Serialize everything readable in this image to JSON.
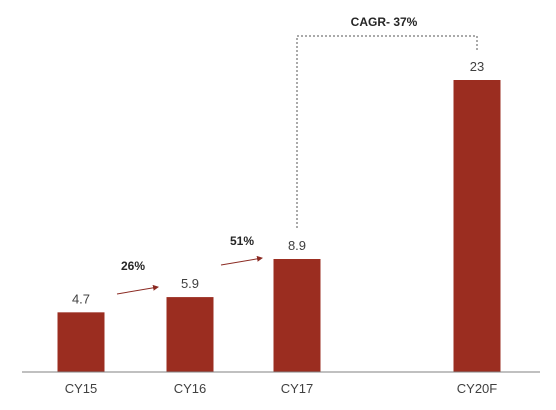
{
  "chart_data": {
    "type": "bar",
    "categories": [
      "CY15",
      "CY16",
      "CY17",
      "CY20F"
    ],
    "values": [
      4.7,
      5.9,
      8.9,
      23
    ],
    "value_labels": [
      "4.7",
      "5.9",
      "8.9",
      "23"
    ],
    "bar_color": "#9B2D20",
    "growth_annotations": [
      {
        "label": "26%",
        "from": "CY15",
        "to": "CY16"
      },
      {
        "label": "51%",
        "from": "CY16",
        "to": "CY17"
      }
    ],
    "cagr_annotation": {
      "label": "CAGR- 37%",
      "from": "CY17",
      "to": "CY20F"
    },
    "arrow_color": "#8B2A22",
    "axis_color": "#808080",
    "title": "",
    "xlabel": "",
    "ylabel": "",
    "ylim": [
      0,
      23
    ],
    "grid": false,
    "legend": "none"
  }
}
